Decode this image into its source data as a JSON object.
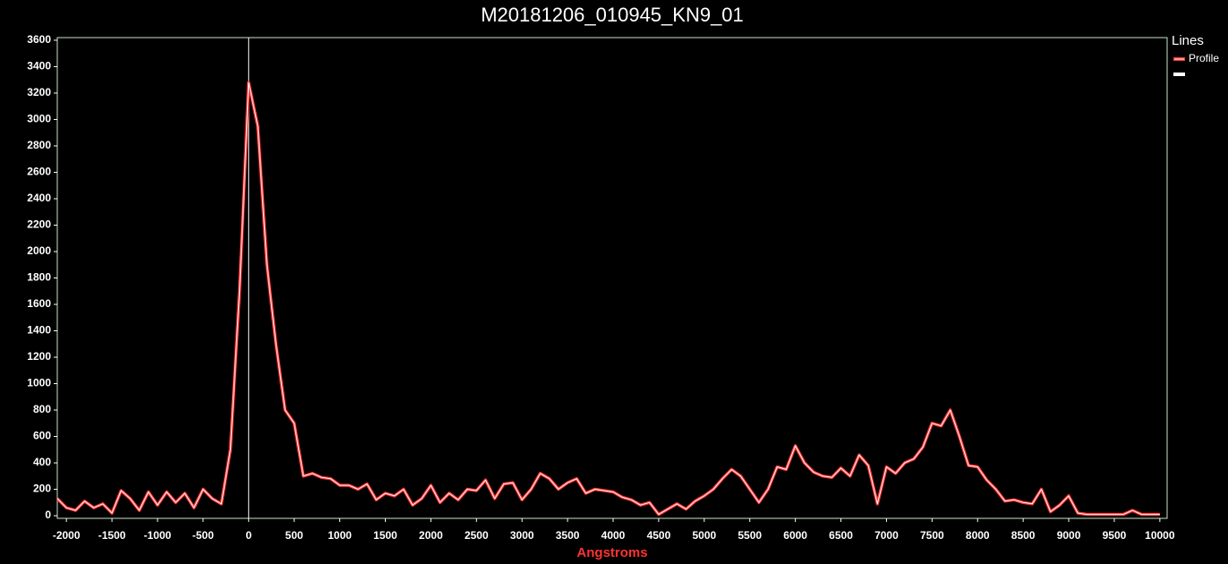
{
  "chart_data": {
    "type": "line",
    "title": "M20181206_010945_KN9_01",
    "x_label": "Angstroms",
    "x": [
      -2100,
      -2000,
      -1900,
      -1800,
      -1700,
      -1600,
      -1500,
      -1400,
      -1300,
      -1200,
      -1100,
      -1000,
      -900,
      -800,
      -700,
      -600,
      -500,
      -400,
      -300,
      -200,
      -100,
      0,
      100,
      200,
      300,
      400,
      500,
      600,
      700,
      800,
      900,
      1000,
      1100,
      1200,
      1300,
      1400,
      1500,
      1600,
      1700,
      1800,
      1900,
      2000,
      2100,
      2200,
      2300,
      2400,
      2500,
      2600,
      2700,
      2800,
      2900,
      3000,
      3100,
      3200,
      3300,
      3400,
      3500,
      3600,
      3700,
      3800,
      3900,
      4000,
      4100,
      4200,
      4300,
      4400,
      4500,
      4600,
      4700,
      4800,
      4900,
      5000,
      5100,
      5200,
      5300,
      5400,
      5500,
      5600,
      5700,
      5800,
      5900,
      6000,
      6100,
      6200,
      6300,
      6400,
      6500,
      6600,
      6700,
      6800,
      6900,
      7000,
      7100,
      7200,
      7300,
      7400,
      7500,
      7600,
      7700,
      7800,
      7900,
      8000,
      8100,
      8200,
      8300,
      8400,
      8500,
      8600,
      8700,
      8800,
      8900,
      9000,
      9100,
      9200,
      9300,
      9400,
      9500,
      9600,
      9700,
      9800,
      9900,
      10000
    ],
    "series": [
      {
        "name": "Profile",
        "color": "#ff3333",
        "values": [
          130,
          60,
          40,
          110,
          60,
          90,
          20,
          190,
          130,
          40,
          180,
          80,
          180,
          100,
          170,
          60,
          200,
          130,
          90,
          500,
          1700,
          3280,
          2950,
          1900,
          1300,
          800,
          700,
          300,
          320,
          290,
          280,
          230,
          230,
          200,
          240,
          120,
          170,
          150,
          200,
          80,
          130,
          230,
          100,
          170,
          120,
          200,
          190,
          270,
          130,
          240,
          250,
          120,
          200,
          320,
          280,
          200,
          250,
          280,
          170,
          200,
          190,
          180,
          140,
          120,
          80,
          100,
          10,
          50,
          90,
          50,
          110,
          150,
          200,
          280,
          350,
          300,
          200,
          100,
          200,
          370,
          350,
          530,
          400,
          330,
          300,
          290,
          360,
          300,
          460,
          380,
          90,
          370,
          320,
          400,
          430,
          520,
          700,
          680,
          800,
          600,
          380,
          370,
          270,
          200,
          110,
          120,
          100,
          90,
          200,
          30,
          80,
          150,
          20,
          10,
          10,
          10,
          10,
          10,
          40,
          10,
          10,
          10
        ]
      }
    ],
    "reference_lines": [
      {
        "x": 0,
        "color": "#ffffff"
      }
    ],
    "legend_title": "Lines",
    "legend": "upper-right",
    "xlim": [
      -2100,
      10080
    ],
    "xticks": [
      -2000,
      -1500,
      -1000,
      -500,
      0,
      500,
      1000,
      1500,
      2000,
      2500,
      3000,
      3500,
      4000,
      4500,
      5000,
      5500,
      6000,
      6500,
      7000,
      7500,
      8000,
      8500,
      9000,
      9500,
      10000
    ],
    "ylim": [
      -20,
      3620
    ],
    "yticks": [
      0,
      200,
      400,
      600,
      800,
      1000,
      1200,
      1400,
      1600,
      1800,
      2000,
      2200,
      2400,
      2600,
      2800,
      3000,
      3200,
      3400,
      3600
    ]
  }
}
